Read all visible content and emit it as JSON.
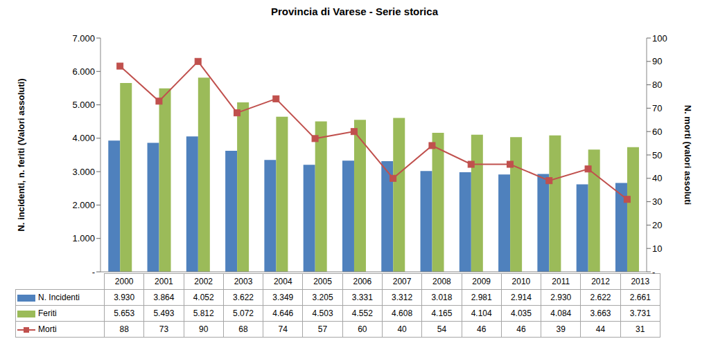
{
  "chart_data": {
    "type": "bar",
    "title": "Provincia di Varese - Serie storica",
    "y_label": "N. incidenti, n. feriti (Valori assoluti)",
    "y2_label": "N. morti (valori assoluti",
    "categories": [
      "2000",
      "2001",
      "2002",
      "2003",
      "2004",
      "2005",
      "2006",
      "2007",
      "2008",
      "2009",
      "2010",
      "2011",
      "2012",
      "2013"
    ],
    "ylim": [
      0,
      7000
    ],
    "yticks": [
      {
        "value": 0,
        "label": "-"
      },
      {
        "value": 1000,
        "label": "1.000"
      },
      {
        "value": 2000,
        "label": "2.000"
      },
      {
        "value": 3000,
        "label": "3.000"
      },
      {
        "value": 4000,
        "label": "4.000"
      },
      {
        "value": 5000,
        "label": "5.000"
      },
      {
        "value": 6000,
        "label": "6.000"
      },
      {
        "value": 7000,
        "label": "7.000"
      }
    ],
    "y2lim": [
      0,
      100
    ],
    "y2ticks": [
      {
        "value": 0,
        "label": "-"
      },
      10,
      20,
      30,
      40,
      50,
      60,
      70,
      80,
      90,
      100
    ],
    "grid": false,
    "series": [
      {
        "name": "N. Incidenti",
        "type": "bar",
        "color": "#4f81bd",
        "values": [
          3930,
          3864,
          4052,
          3622,
          3349,
          3205,
          3331,
          3312,
          3018,
          2981,
          2914,
          2930,
          2622,
          2661
        ],
        "value_labels": [
          "3.930",
          "3.864",
          "4.052",
          "3.622",
          "3.349",
          "3.205",
          "3.331",
          "3.312",
          "3.018",
          "2.981",
          "2.914",
          "2.930",
          "2.622",
          "2.661"
        ]
      },
      {
        "name": "Feriti",
        "type": "bar",
        "color": "#9bbb59",
        "values": [
          5653,
          5493,
          5812,
          5072,
          4646,
          4503,
          4552,
          4608,
          4165,
          4104,
          4035,
          4084,
          3663,
          3731
        ],
        "value_labels": [
          "5.653",
          "5.493",
          "5.812",
          "5.072",
          "4.646",
          "4.503",
          "4.552",
          "4.608",
          "4.165",
          "4.104",
          "4.035",
          "4.084",
          "3.663",
          "3.731"
        ]
      },
      {
        "name": "Morti",
        "type": "line",
        "axis": "y2",
        "color": "#c0504d",
        "marker": "square",
        "values": [
          88,
          73,
          90,
          68,
          74,
          57,
          60,
          40,
          54,
          46,
          46,
          39,
          44,
          31
        ]
      }
    ]
  }
}
